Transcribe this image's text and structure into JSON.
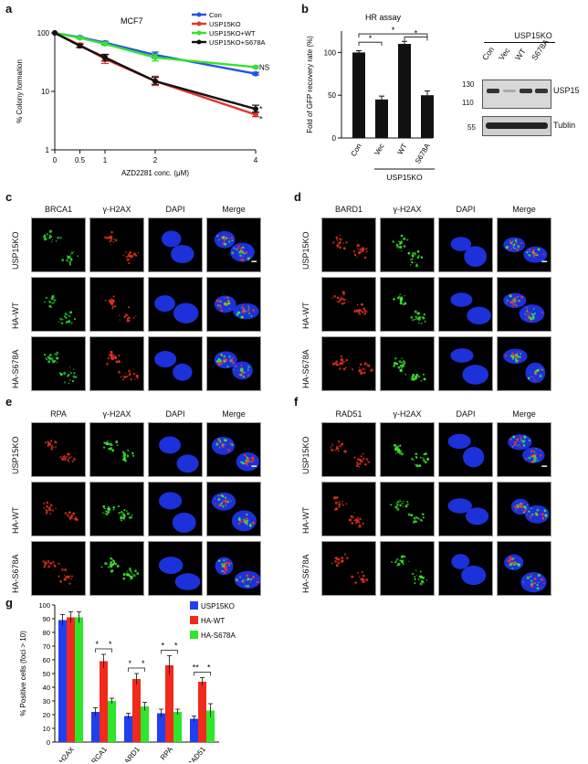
{
  "panels": {
    "a": "a",
    "b": "b",
    "c": "c",
    "d": "d",
    "e": "e",
    "f": "f",
    "g": "g"
  },
  "colors": {
    "con": "#2553e8",
    "ko": "#e8312a",
    "wt": "#36e22c",
    "s678a": "#111111",
    "bar_black": "#111111",
    "g_ko": "#1f3ff0",
    "g_wt": "#f02a1c",
    "g_s678a": "#2ee62a"
  },
  "chart_data": [
    {
      "type": "line",
      "title": "MCF7",
      "xlabel": "AZD2281 conc. (μM)",
      "ylabel": "% Colony formation",
      "x": [
        0,
        0.5,
        1,
        2,
        4
      ],
      "x_tick_labels": [
        "0",
        "0.5",
        "1",
        "2",
        "4"
      ],
      "y_scale": "log",
      "y_tick_labels": [
        "100",
        "10",
        "1"
      ],
      "ylim": [
        1,
        100
      ],
      "legend": "top-right",
      "series": [
        {
          "name": "Con",
          "values": [
            100,
            84,
            68,
            42,
            20
          ]
        },
        {
          "name": "USP15KO",
          "values": [
            100,
            62,
            36,
            15,
            4
          ]
        },
        {
          "name": "USP15KO+WT",
          "values": [
            100,
            82,
            65,
            38,
            26
          ]
        },
        {
          "name": "USP15KO+S678A",
          "values": [
            100,
            60,
            38,
            15,
            5
          ]
        }
      ],
      "annotations": [
        "NS",
        "*",
        "*"
      ]
    },
    {
      "type": "bar",
      "title": "HR assay",
      "ylabel": "Fold of GFP recovery rate (%)",
      "categories": [
        "Con",
        "Vec",
        "WT",
        "S678A"
      ],
      "group_label": "USP15KO",
      "values": [
        100,
        45,
        110,
        50
      ],
      "errors": [
        2,
        4,
        3,
        5
      ],
      "y_tick_labels": [
        "0",
        "50",
        "100"
      ],
      "ylim": [
        0,
        125
      ],
      "annotations": [
        "*",
        "*",
        "*"
      ]
    },
    {
      "type": "bar",
      "ylabel": "% Positive cells (foci > 10)",
      "categories": [
        "γ-H2AX",
        "BRCA1",
        "BARD1",
        "RPA",
        "RAD51"
      ],
      "y_tick_labels": [
        "0",
        "10",
        "20",
        "30",
        "40",
        "50",
        "60",
        "70",
        "80",
        "90",
        "100"
      ],
      "ylim": [
        0,
        100
      ],
      "legend": "top-right",
      "series": [
        {
          "name": "USP15KO",
          "values": [
            89,
            22,
            19,
            21,
            17
          ],
          "errors": [
            4,
            3,
            2,
            3,
            2
          ]
        },
        {
          "name": "HA-WT",
          "values": [
            91,
            59,
            46,
            56,
            44
          ],
          "errors": [
            4,
            5,
            4,
            7,
            3
          ]
        },
        {
          "name": "HA-S678A",
          "values": [
            91,
            30,
            26,
            22,
            23
          ],
          "errors": [
            4,
            2,
            3,
            2,
            5
          ]
        }
      ],
      "annotations": [
        "*",
        "*",
        "*",
        "*",
        "*",
        "*",
        "**",
        "*"
      ]
    }
  ],
  "blot": {
    "group_label": "USP15KO",
    "lanes": [
      "Con",
      "Vec",
      "WT",
      "S678A"
    ],
    "markers": [
      "130",
      "110",
      "55"
    ],
    "bands": [
      "USP15",
      "Tublin"
    ]
  },
  "micro_panels": [
    {
      "id": "c",
      "columns": [
        "BRCA1",
        "γ-H2AX",
        "DAPI",
        "Merge"
      ],
      "rows": [
        "USP15KO",
        "HA-WT",
        "HA-S678A"
      ]
    },
    {
      "id": "d",
      "columns": [
        "BARD1",
        "γ-H2AX",
        "DAPI",
        "Merge"
      ],
      "rows": [
        "USP15KO",
        "HA-WT",
        "HA-S678A"
      ]
    },
    {
      "id": "e",
      "columns": [
        "RPA",
        "γ-H2AX",
        "DAPI",
        "Merge"
      ],
      "rows": [
        "USP15KO",
        "HA-WT",
        "HA-S678A"
      ]
    },
    {
      "id": "f",
      "columns": [
        "RAD51",
        "γ-H2AX",
        "DAPI",
        "Merge"
      ],
      "rows": [
        "USP15KO",
        "HA-WT",
        "HA-S678A"
      ]
    }
  ]
}
